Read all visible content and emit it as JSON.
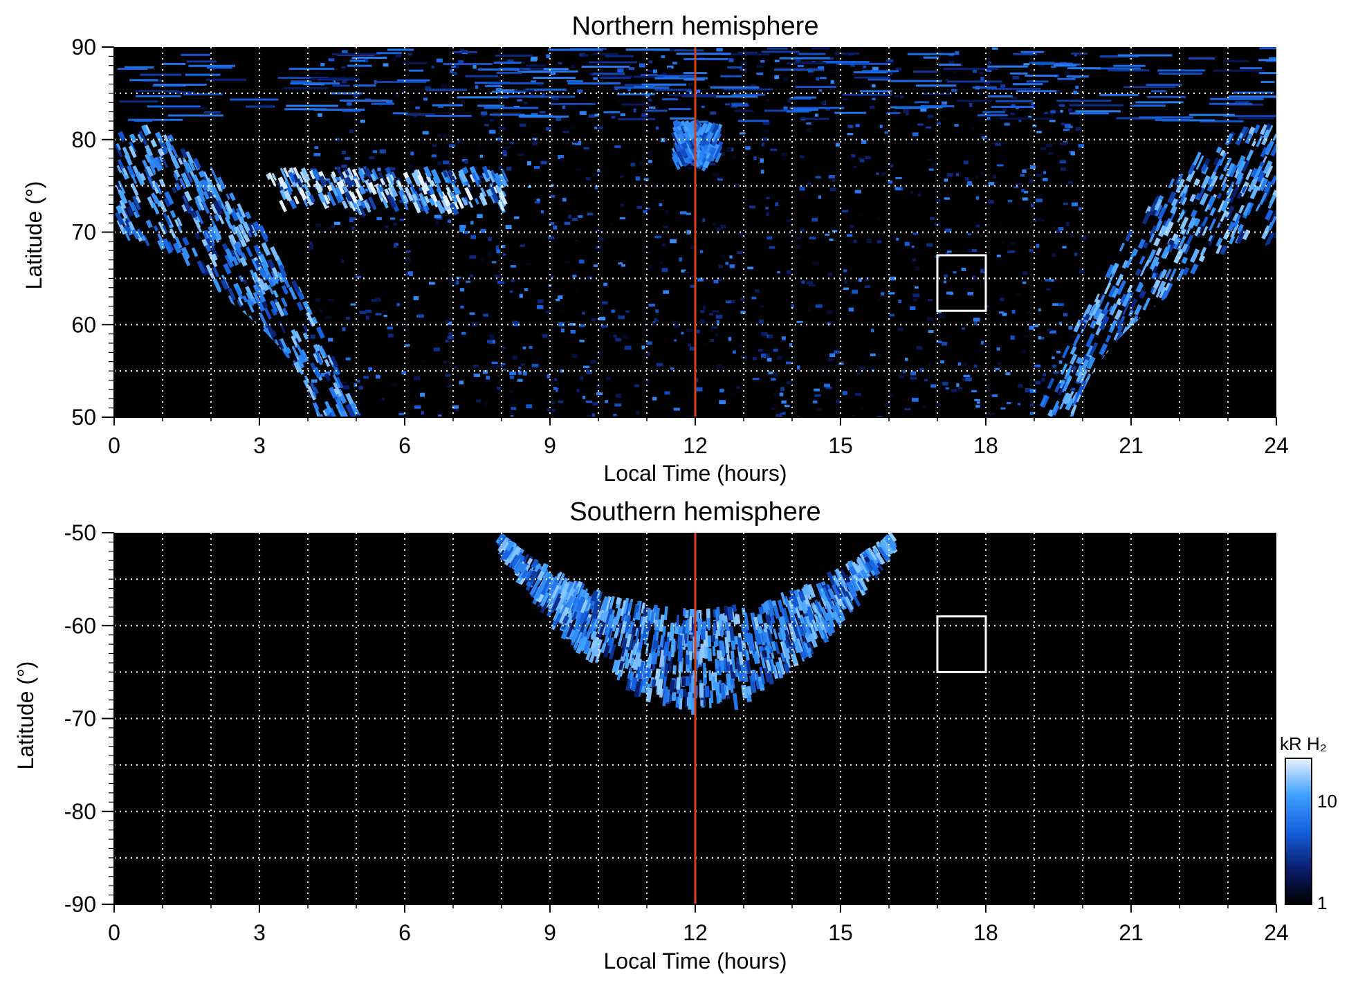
{
  "chart_data": [
    {
      "type": "heatmap",
      "title": "Northern hemisphere",
      "xlabel": "Local Time (hours)",
      "ylabel": "Latitude (°)",
      "xlim": [
        0,
        24
      ],
      "ylim": [
        50,
        90
      ],
      "xticks": [
        "0",
        "3",
        "6",
        "9",
        "12",
        "15",
        "18",
        "21",
        "24"
      ],
      "yticks": [
        "50",
        "60",
        "70",
        "80",
        "90"
      ],
      "grid": true,
      "reference_line": {
        "x": 12,
        "color": "#d9401c"
      },
      "box": {
        "x": [
          17,
          18
        ],
        "y": [
          61.5,
          67.5
        ]
      },
      "emission_regions": [
        {
          "feature": "oval band",
          "lat_range": [
            69,
            82
          ],
          "lt_range": [
            0,
            24
          ],
          "peak_kR": 12
        },
        {
          "feature": "dawn arc",
          "lat_range": [
            73,
            77
          ],
          "lt_range": [
            3,
            8
          ],
          "peak_kR": 20
        },
        {
          "feature": "polar cusp",
          "lat_range": [
            78,
            82
          ],
          "lt_range": [
            11.5,
            12.5
          ],
          "peak_kR": 8
        }
      ]
    },
    {
      "type": "heatmap",
      "title": "Southern hemisphere",
      "xlabel": "Local Time (hours)",
      "ylabel": "Latitude (°)",
      "xlim": [
        0,
        24
      ],
      "ylim": [
        -90,
        -50
      ],
      "xticks": [
        "0",
        "3",
        "6",
        "9",
        "12",
        "15",
        "18",
        "21",
        "24"
      ],
      "yticks": [
        "-50",
        "-60",
        "-70",
        "-80",
        "-90"
      ],
      "grid": true,
      "reference_line": {
        "x": 12,
        "color": "#d9401c"
      },
      "box": {
        "x": [
          17,
          18
        ],
        "y": [
          -65,
          -59
        ]
      },
      "emission_regions": [
        {
          "feature": "oval arc",
          "lat_range": [
            -68,
            -50
          ],
          "lt_range": [
            8,
            16
          ],
          "peak_kR": 12
        }
      ]
    }
  ],
  "colorbar": {
    "label": "kR H₂",
    "scale": "log",
    "range": [
      1,
      20
    ],
    "ticks": [
      "10",
      "1"
    ],
    "colors": [
      "#000000",
      "#0a1e6e",
      "#1560e0",
      "#3fa0ff",
      "#e8f4ff"
    ]
  }
}
